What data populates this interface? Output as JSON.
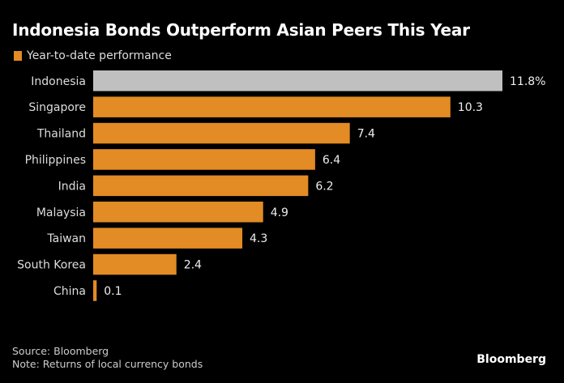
{
  "chart_data": {
    "type": "bar",
    "orientation": "horizontal",
    "title": "Indonesia Bonds Outperform Asian Peers This Year",
    "legend": [
      "Year-to-date performance"
    ],
    "categories": [
      "Indonesia",
      "Singapore",
      "Thailand",
      "Philippines",
      "India",
      "Malaysia",
      "Taiwan",
      "South Korea",
      "China"
    ],
    "values": [
      11.8,
      10.3,
      7.4,
      6.4,
      6.2,
      4.9,
      4.3,
      2.4,
      0.1
    ],
    "value_labels": [
      "11.8%",
      "10.3",
      "7.4",
      "6.4",
      "6.2",
      "4.9",
      "4.3",
      "2.4",
      "0.1"
    ],
    "xlim": [
      0,
      11.8
    ],
    "highlight_index": 0,
    "colors": {
      "bar": "#e38b24",
      "highlight": "#c0c0c0"
    },
    "xlabel": "",
    "ylabel": ""
  },
  "footer": {
    "source": "Source: Bloomberg",
    "note": "Note: Returns of local currency bonds",
    "brand": "Bloomberg"
  }
}
